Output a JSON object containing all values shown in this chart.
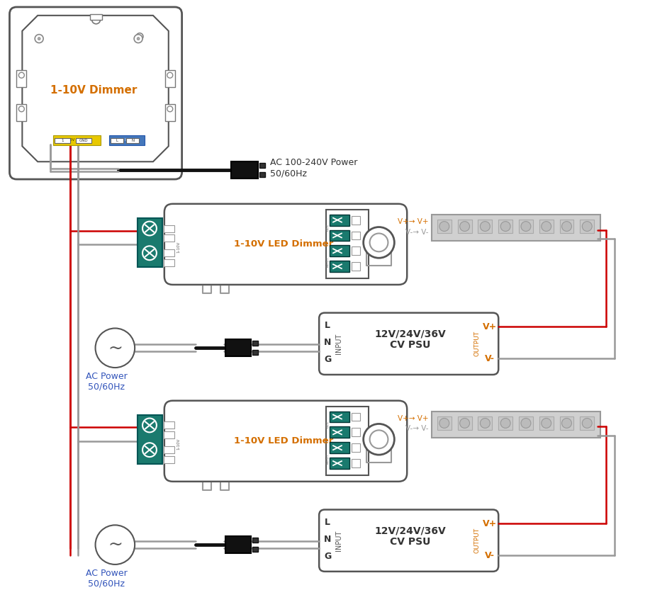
{
  "bg_color": "#ffffff",
  "red": "#cc0000",
  "gray": "#999999",
  "dark_gray": "#555555",
  "black": "#111111",
  "teal": "#1a7a6e",
  "orange": "#d46f00",
  "blue_label": "#3355bb",
  "edge": "#444444",
  "light_edge": "#888888",
  "dimmer_title": "1-10V Dimmer",
  "led_dimmer_label": "1-10V LED Dimmer",
  "psu_label_line1": "12V/24V/36V",
  "psu_label_line2": "CV PSU",
  "ac_top_label": "AC 100-240V Power\n50/60Hz",
  "ac_side_label": "AC Power\n50/60Hz",
  "output_lbl": "OUTPUT",
  "input_lbl": "INPUT",
  "vplus": "V+",
  "vminus": "V-"
}
